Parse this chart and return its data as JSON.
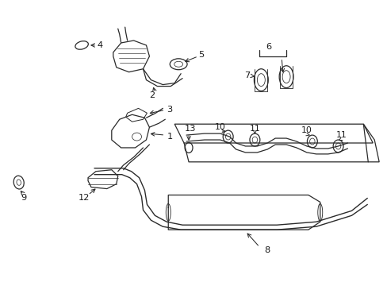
{
  "bg_color": "#ffffff",
  "line_color": "#2a2a2a",
  "text_color": "#1a1a1a",
  "fig_width": 4.89,
  "fig_height": 3.6,
  "dpi": 100
}
